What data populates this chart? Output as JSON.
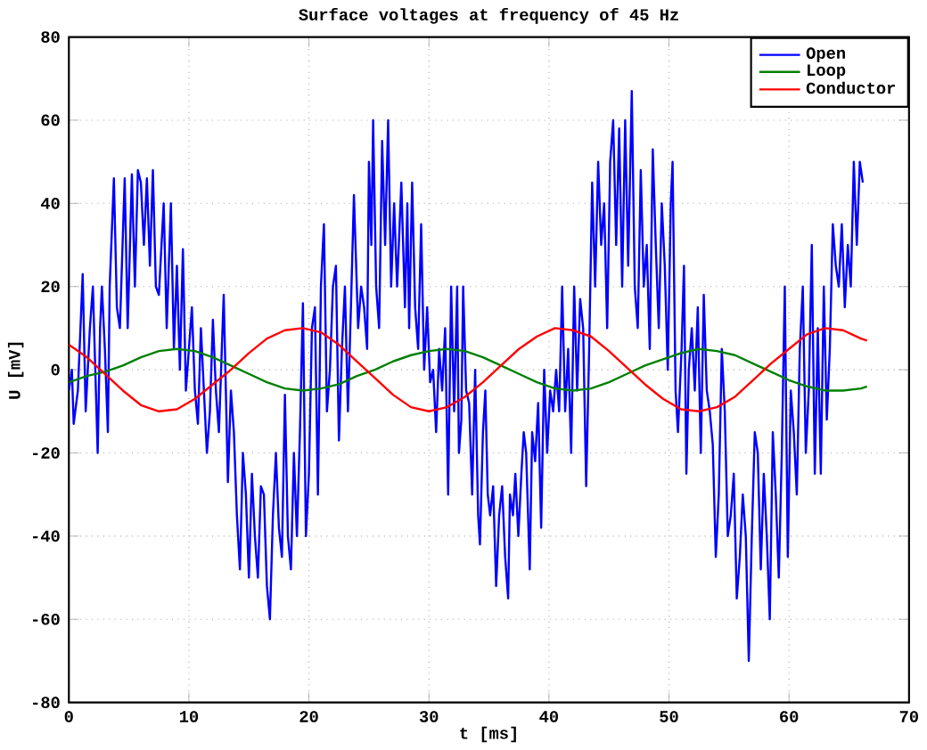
{
  "chart_data": {
    "type": "line",
    "title": "Surface voltages at frequency of 45 Hz",
    "xlabel": "t [ms]",
    "ylabel": "U [mV]",
    "xlim": [
      0,
      70
    ],
    "ylim": [
      -80,
      80
    ],
    "xticks": [
      0,
      10,
      20,
      30,
      40,
      50,
      60,
      70
    ],
    "yticks": [
      -80,
      -60,
      -40,
      -20,
      0,
      20,
      40,
      60,
      80
    ],
    "grid": true,
    "legend": "top right",
    "marker": "none",
    "line_style": "solid",
    "series": [
      {
        "name": "Open",
        "color": "#0000ff",
        "x": [
          0,
          0.25,
          0.4,
          0.75,
          1.15,
          1.4,
          1.75,
          2,
          2.25,
          2.4,
          2.6,
          2.75,
          3,
          3.25,
          3.4,
          3.75,
          4,
          4.25,
          4.65,
          4.9,
          5.25,
          5.5,
          5.75,
          6,
          6.25,
          6.5,
          6.75,
          7,
          7.25,
          7.5,
          7.9,
          8.15,
          8.5,
          8.75,
          9,
          9.25,
          9.5,
          9.75,
          10,
          10.25,
          10.5,
          10.75,
          11,
          11.25,
          11.5,
          11.75,
          12,
          12.25,
          12.5,
          12.9,
          13.25,
          13.5,
          13.75,
          14,
          14.25,
          14.5,
          14.75,
          15,
          15.25,
          15.5,
          15.75,
          16,
          16.25,
          16.5,
          16.75,
          17,
          17.25,
          17.5,
          17.75,
          18,
          18.25,
          18.5,
          18.75,
          19,
          19.25,
          19.5,
          19.75,
          20,
          20.25,
          20.5,
          20.75,
          21,
          21.25,
          21.5,
          21.75,
          22,
          22.25,
          22.5,
          22.75,
          23,
          23.25,
          23.5,
          23.75,
          24.1,
          24.35,
          24.6,
          24.85,
          25,
          25.2,
          25.35,
          25.6,
          25.85,
          26.1,
          26.35,
          26.6,
          26.85,
          27.1,
          27.35,
          27.7,
          28,
          28.2,
          28.35,
          28.6,
          28.85,
          29.1,
          29.35,
          29.6,
          29.85,
          30.1,
          30.35,
          30.6,
          30.85,
          31.1,
          31.35,
          31.6,
          31.85,
          32.1,
          32.35,
          32.5,
          32.7,
          32.85,
          33.1,
          33.35,
          33.6,
          33.85,
          34.1,
          34.25,
          34.5,
          34.7,
          34.9,
          35.1,
          35.35,
          35.6,
          35.85,
          36.1,
          36.35,
          36.6,
          36.75,
          37,
          37.2,
          37.45,
          37.7,
          37.9,
          38.1,
          38.4,
          38.6,
          38.85,
          39.1,
          39.35,
          39.6,
          39.85,
          40.1,
          40.35,
          40.6,
          40.85,
          41.1,
          41.35,
          41.6,
          41.85,
          42.1,
          42.35,
          42.6,
          42.85,
          43.1,
          43.35,
          43.6,
          43.85,
          44.1,
          44.35,
          44.6,
          44.85,
          45.1,
          45.35,
          45.6,
          45.85,
          46.1,
          46.35,
          46.6,
          46.9,
          47.15,
          47.4,
          47.65,
          47.9,
          48.15,
          48.4,
          48.65,
          48.9,
          49.15,
          49.4,
          49.65,
          49.9,
          50.15,
          50.3,
          50.55,
          50.75,
          51.05,
          51.25,
          51.45,
          51.65,
          51.9,
          52.15,
          52.4,
          52.65,
          52.9,
          53.15,
          53.4,
          53.65,
          53.9,
          54.15,
          54.4,
          54.65,
          54.9,
          55.15,
          55.4,
          55.65,
          55.9,
          56.15,
          56.4,
          56.65,
          56.9,
          57.15,
          57.4,
          57.65,
          57.9,
          58.15,
          58.4,
          58.65,
          58.9,
          59.15,
          59.4,
          59.65,
          59.9,
          60.15,
          60.4,
          60.65,
          60.9,
          61.15,
          61.4,
          61.65,
          61.9,
          62.15,
          62.4,
          62.65,
          62.9,
          63.15,
          63.4,
          63.65,
          63.9,
          64.15,
          64.4,
          64.65,
          64.9,
          65.15,
          65.4,
          65.65,
          65.9,
          66.15
        ],
        "values": [
          -5,
          0,
          -13,
          -5,
          23,
          -10,
          10,
          20,
          -5,
          -20,
          10,
          20,
          5,
          -15,
          20,
          46,
          15,
          10,
          46,
          10,
          47,
          20,
          48,
          45,
          30,
          46,
          25,
          48,
          20,
          18,
          40,
          10,
          40,
          5,
          25,
          0,
          29,
          -5,
          5,
          15,
          -5,
          -13,
          10,
          -5,
          -20,
          -10,
          12,
          -5,
          -15,
          18,
          -27,
          -5,
          -15,
          -35,
          -48,
          -20,
          -30,
          -50,
          -25,
          -40,
          -50,
          -28,
          -30,
          -52,
          -60,
          -35,
          -20,
          -38,
          -45,
          -6,
          -40,
          -48,
          -20,
          -40,
          -15,
          16,
          -40,
          -25,
          10,
          15,
          -30,
          20,
          35,
          -10,
          0,
          20,
          25,
          -17,
          5,
          20,
          -10,
          15,
          42,
          10,
          20,
          15,
          5,
          50,
          30,
          60,
          20,
          10,
          55,
          30,
          60,
          20,
          40,
          20,
          45,
          15,
          40,
          10,
          45,
          15,
          5,
          35,
          0,
          15,
          -3,
          0,
          -15,
          5,
          -5,
          10,
          -30,
          20,
          -10,
          20,
          -20,
          -12,
          20,
          -5,
          -8,
          -30,
          0,
          -35,
          -42,
          -15,
          -5,
          -30,
          -35,
          -28,
          -52,
          -35,
          -28,
          -45,
          -55,
          -30,
          -35,
          -25,
          -40,
          -25,
          -15,
          -20,
          -48,
          -15,
          -22,
          -8,
          -38,
          0,
          -20,
          -5,
          -10,
          0,
          -10,
          20,
          -10,
          5,
          -20,
          20,
          -5,
          17,
          10,
          -28,
          5,
          45,
          20,
          50,
          30,
          40,
          10,
          50,
          60,
          30,
          58,
          20,
          60,
          25,
          67,
          20,
          10,
          48,
          20,
          30,
          5,
          53,
          30,
          10,
          40,
          25,
          0,
          40,
          50,
          -5,
          -15,
          5,
          25,
          -25,
          0,
          10,
          -5,
          15,
          -20,
          18,
          -5,
          -10,
          -18,
          -45,
          -30,
          5,
          -10,
          -40,
          -35,
          -25,
          -55,
          -45,
          -30,
          -40,
          -70,
          -40,
          -15,
          -20,
          -48,
          -25,
          -40,
          -60,
          -15,
          -30,
          -50,
          -20,
          20,
          -45,
          -5,
          -15,
          -30,
          5,
          20,
          -20,
          -5,
          30,
          -25,
          10,
          -25,
          20,
          -12,
          5,
          35,
          25,
          20,
          35,
          15,
          30,
          20,
          50,
          30,
          50,
          45
        ]
      },
      {
        "name": "Loop",
        "color": "#008000",
        "x": [
          0,
          1.5,
          3,
          4.5,
          6,
          7.5,
          9,
          10.5,
          12,
          13.5,
          15,
          16.5,
          18,
          19.5,
          21,
          22.5,
          24,
          25.5,
          27,
          28.5,
          30,
          31.5,
          33,
          34.5,
          36,
          37.5,
          39,
          40.5,
          42,
          43.5,
          45,
          46.5,
          48,
          49.5,
          51,
          52.5,
          54,
          55.5,
          57,
          58.5,
          60,
          61.5,
          63,
          64.5,
          66,
          66.5
        ],
        "values": [
          -3,
          -1.5,
          -0.5,
          1,
          3,
          4.5,
          5,
          4.5,
          3,
          1,
          -1,
          -3,
          -4.5,
          -5,
          -4.5,
          -3.5,
          -1.5,
          0,
          2,
          3.5,
          4.5,
          5,
          4.5,
          3,
          1,
          -1,
          -3,
          -4.5,
          -5,
          -4.5,
          -3,
          -1,
          1,
          2.5,
          4,
          5,
          4.5,
          3.5,
          1.5,
          -0.5,
          -2.5,
          -4,
          -5,
          -5,
          -4.5,
          -4
        ]
      },
      {
        "name": "Conductor",
        "color": "#ff0000",
        "x": [
          0,
          1.5,
          3,
          4.5,
          6,
          7.5,
          9,
          10.5,
          12,
          13.5,
          15,
          16.5,
          18,
          19.5,
          21,
          22.5,
          24,
          25.5,
          27,
          28.5,
          30,
          31.5,
          33,
          34.5,
          36,
          37.5,
          39,
          40.5,
          42,
          43.5,
          45,
          46.5,
          48,
          49.5,
          51,
          52.5,
          54,
          55.5,
          57,
          58.5,
          60,
          61.5,
          63,
          64.5,
          66,
          66.5
        ],
        "values": [
          6,
          3,
          -1,
          -5,
          -8.5,
          -10,
          -9.5,
          -7,
          -3.5,
          0,
          4,
          7.5,
          9.5,
          10,
          9,
          6,
          2,
          -2,
          -6,
          -9,
          -10,
          -9,
          -6.5,
          -3,
          1,
          5,
          8,
          10,
          9.5,
          8,
          4.5,
          0.5,
          -3.5,
          -7,
          -9.5,
          -10,
          -9,
          -6.5,
          -2.5,
          1.5,
          5,
          8.5,
          10,
          9.5,
          7.5,
          7
        ]
      }
    ]
  }
}
